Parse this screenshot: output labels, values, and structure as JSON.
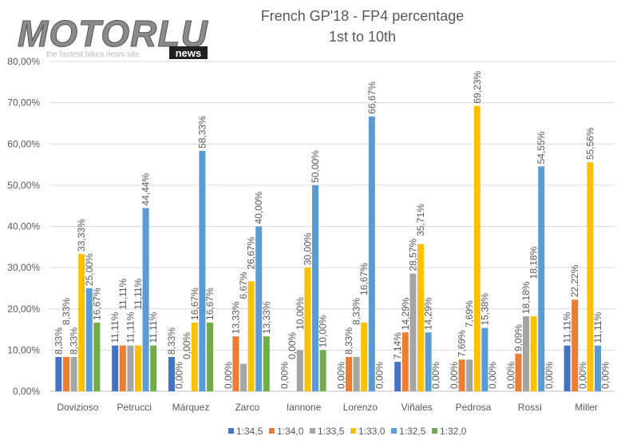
{
  "logo": {
    "text": "MOTORLU",
    "tagline": "the fastest bikes news site",
    "badge": "news"
  },
  "chart_data": {
    "type": "bar",
    "title": "French GP'18 - FP4 percentage",
    "subtitle": "1st to 10th",
    "xlabel": "",
    "ylabel": "",
    "ylim": [
      0,
      80
    ],
    "yticks": [
      "0,00%",
      "10,00%",
      "20,00%",
      "30,00%",
      "40,00%",
      "50,00%",
      "60,00%",
      "70,00%",
      "80,00%"
    ],
    "grid": true,
    "legend": "bottom",
    "categories": [
      "Dovizioso",
      "Petrucci",
      "Márquez",
      "Zarco",
      "Iannone",
      "Lorenzo",
      "Viñales",
      "Pedrosa",
      "Rossi",
      "Miller"
    ],
    "series": [
      {
        "name": "1:34,5",
        "color": "#4472C4",
        "values": [
          8.33,
          11.11,
          8.33,
          0,
          0,
          0,
          7.14,
          0,
          0,
          11.11
        ]
      },
      {
        "name": "1:34,0",
        "color": "#ED7D31",
        "values": [
          8.33,
          11.11,
          0,
          13.33,
          0,
          8.33,
          14.29,
          7.69,
          9.09,
          22.22
        ]
      },
      {
        "name": "1:33,5",
        "color": "#A5A5A5",
        "values": [
          8.33,
          11.11,
          0,
          6.67,
          10.0,
          8.33,
          28.57,
          7.69,
          18.18,
          0
        ]
      },
      {
        "name": "1:33,0",
        "color": "#FFC000",
        "values": [
          33.33,
          11.11,
          16.67,
          26.67,
          30.0,
          16.67,
          35.71,
          69.23,
          18.18,
          55.56
        ]
      },
      {
        "name": "1:32,5",
        "color": "#5B9BD5",
        "values": [
          25.0,
          44.44,
          58.33,
          40.0,
          50.0,
          66.67,
          14.29,
          15.38,
          54.55,
          11.11
        ]
      },
      {
        "name": "1:32,0",
        "color": "#70AD47",
        "values": [
          16.67,
          11.11,
          16.67,
          13.33,
          10.0,
          0,
          0,
          0,
          0,
          0
        ]
      }
    ]
  }
}
